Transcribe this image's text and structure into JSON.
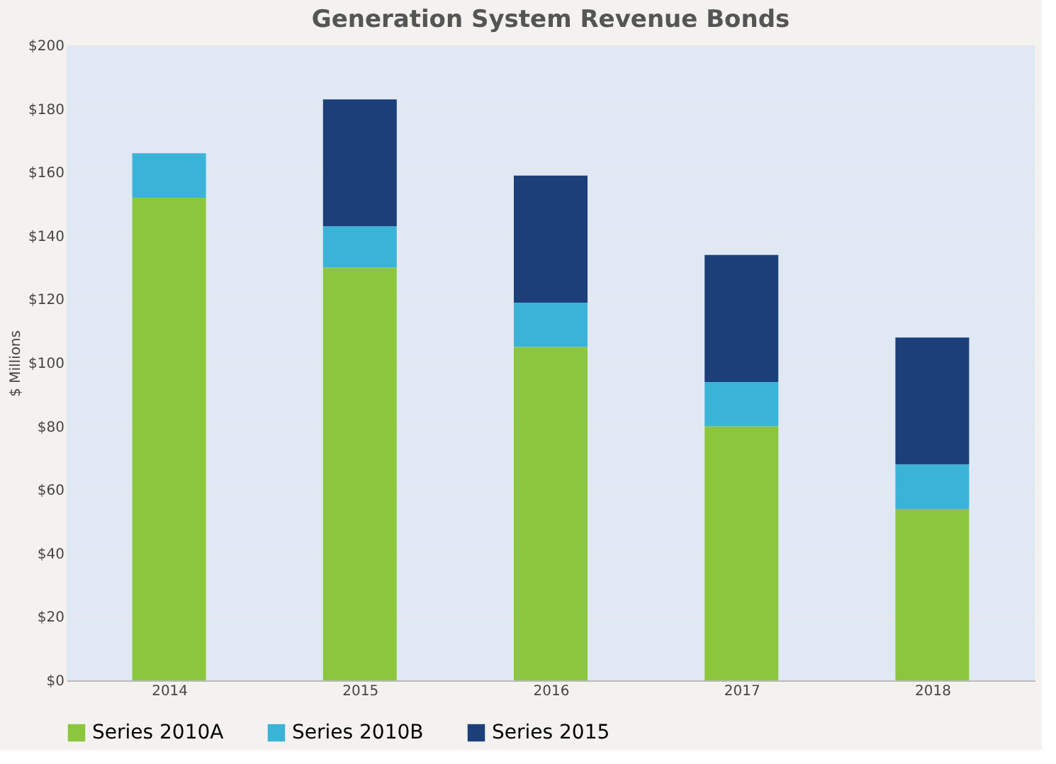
{
  "chart_data": {
    "type": "bar",
    "title": "Generation System Revenue Bonds",
    "ylabel": "$ Millions",
    "stacked": true,
    "categories": [
      "2014",
      "2015",
      "2016",
      "2017",
      "2018"
    ],
    "series": [
      {
        "name": "Series 2010A",
        "color": "#8cc63e",
        "values": [
          152,
          130,
          105,
          80,
          54
        ]
      },
      {
        "name": "Series 2010B",
        "color": "#3bb3d8",
        "values": [
          14,
          13,
          14,
          14,
          14
        ]
      },
      {
        "name": "Series 2015",
        "color": "#1c3f7a",
        "values": [
          null,
          40,
          40,
          40,
          40
        ]
      }
    ],
    "ylim": [
      0,
      200
    ],
    "yticks": [
      {
        "value": 0,
        "label": "$0"
      },
      {
        "value": 20,
        "label": "$20"
      },
      {
        "value": 40,
        "label": "$40"
      },
      {
        "value": 60,
        "label": "$60"
      },
      {
        "value": 80,
        "label": "$80"
      },
      {
        "value": 100,
        "label": "$100"
      },
      {
        "value": 120,
        "label": "$120"
      },
      {
        "value": 140,
        "label": "$140"
      },
      {
        "value": 160,
        "label": "$160"
      },
      {
        "value": 180,
        "label": "$180"
      },
      {
        "value": 200,
        "label": "$200"
      }
    ],
    "grid": "y",
    "legend": "bottom"
  }
}
